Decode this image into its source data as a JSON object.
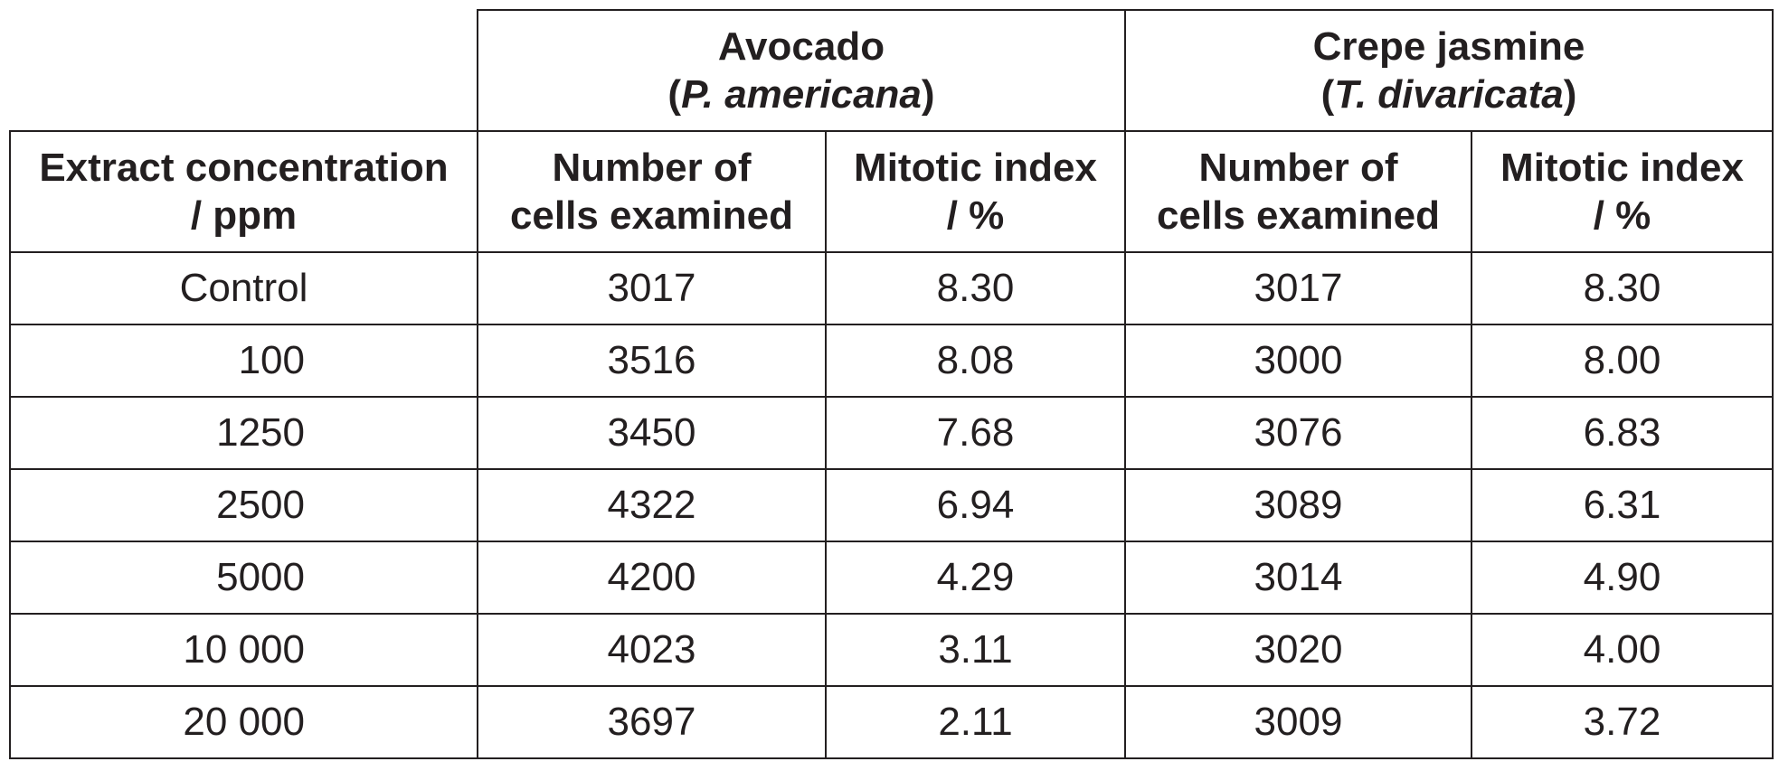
{
  "groups": [
    {
      "name": "Avocado",
      "species": "P. americana"
    },
    {
      "name": "Crepe jasmine",
      "species": "T. divaricata"
    }
  ],
  "columns": {
    "concentration": [
      "Extract concentration",
      "/ ppm"
    ],
    "cells": [
      "Number of",
      "cells examined"
    ],
    "mitotic": [
      "Mitotic index",
      "/ %"
    ]
  },
  "rows": [
    {
      "conc": "Control",
      "av_cells": "3017",
      "av_mi": "8.30",
      "cj_cells": "3017",
      "cj_mi": "8.30"
    },
    {
      "conc": "100",
      "av_cells": "3516",
      "av_mi": "8.08",
      "cj_cells": "3000",
      "cj_mi": "8.00"
    },
    {
      "conc": "1250",
      "av_cells": "3450",
      "av_mi": "7.68",
      "cj_cells": "3076",
      "cj_mi": "6.83"
    },
    {
      "conc": "2500",
      "av_cells": "4322",
      "av_mi": "6.94",
      "cj_cells": "3089",
      "cj_mi": "6.31"
    },
    {
      "conc": "5000",
      "av_cells": "4200",
      "av_mi": "4.29",
      "cj_cells": "3014",
      "cj_mi": "4.90"
    },
    {
      "conc": "10 000",
      "av_cells": "4023",
      "av_mi": "3.11",
      "cj_cells": "3020",
      "cj_mi": "4.00"
    },
    {
      "conc": "20 000",
      "av_cells": "3697",
      "av_mi": "2.11",
      "cj_cells": "3009",
      "cj_mi": "3.72"
    }
  ]
}
